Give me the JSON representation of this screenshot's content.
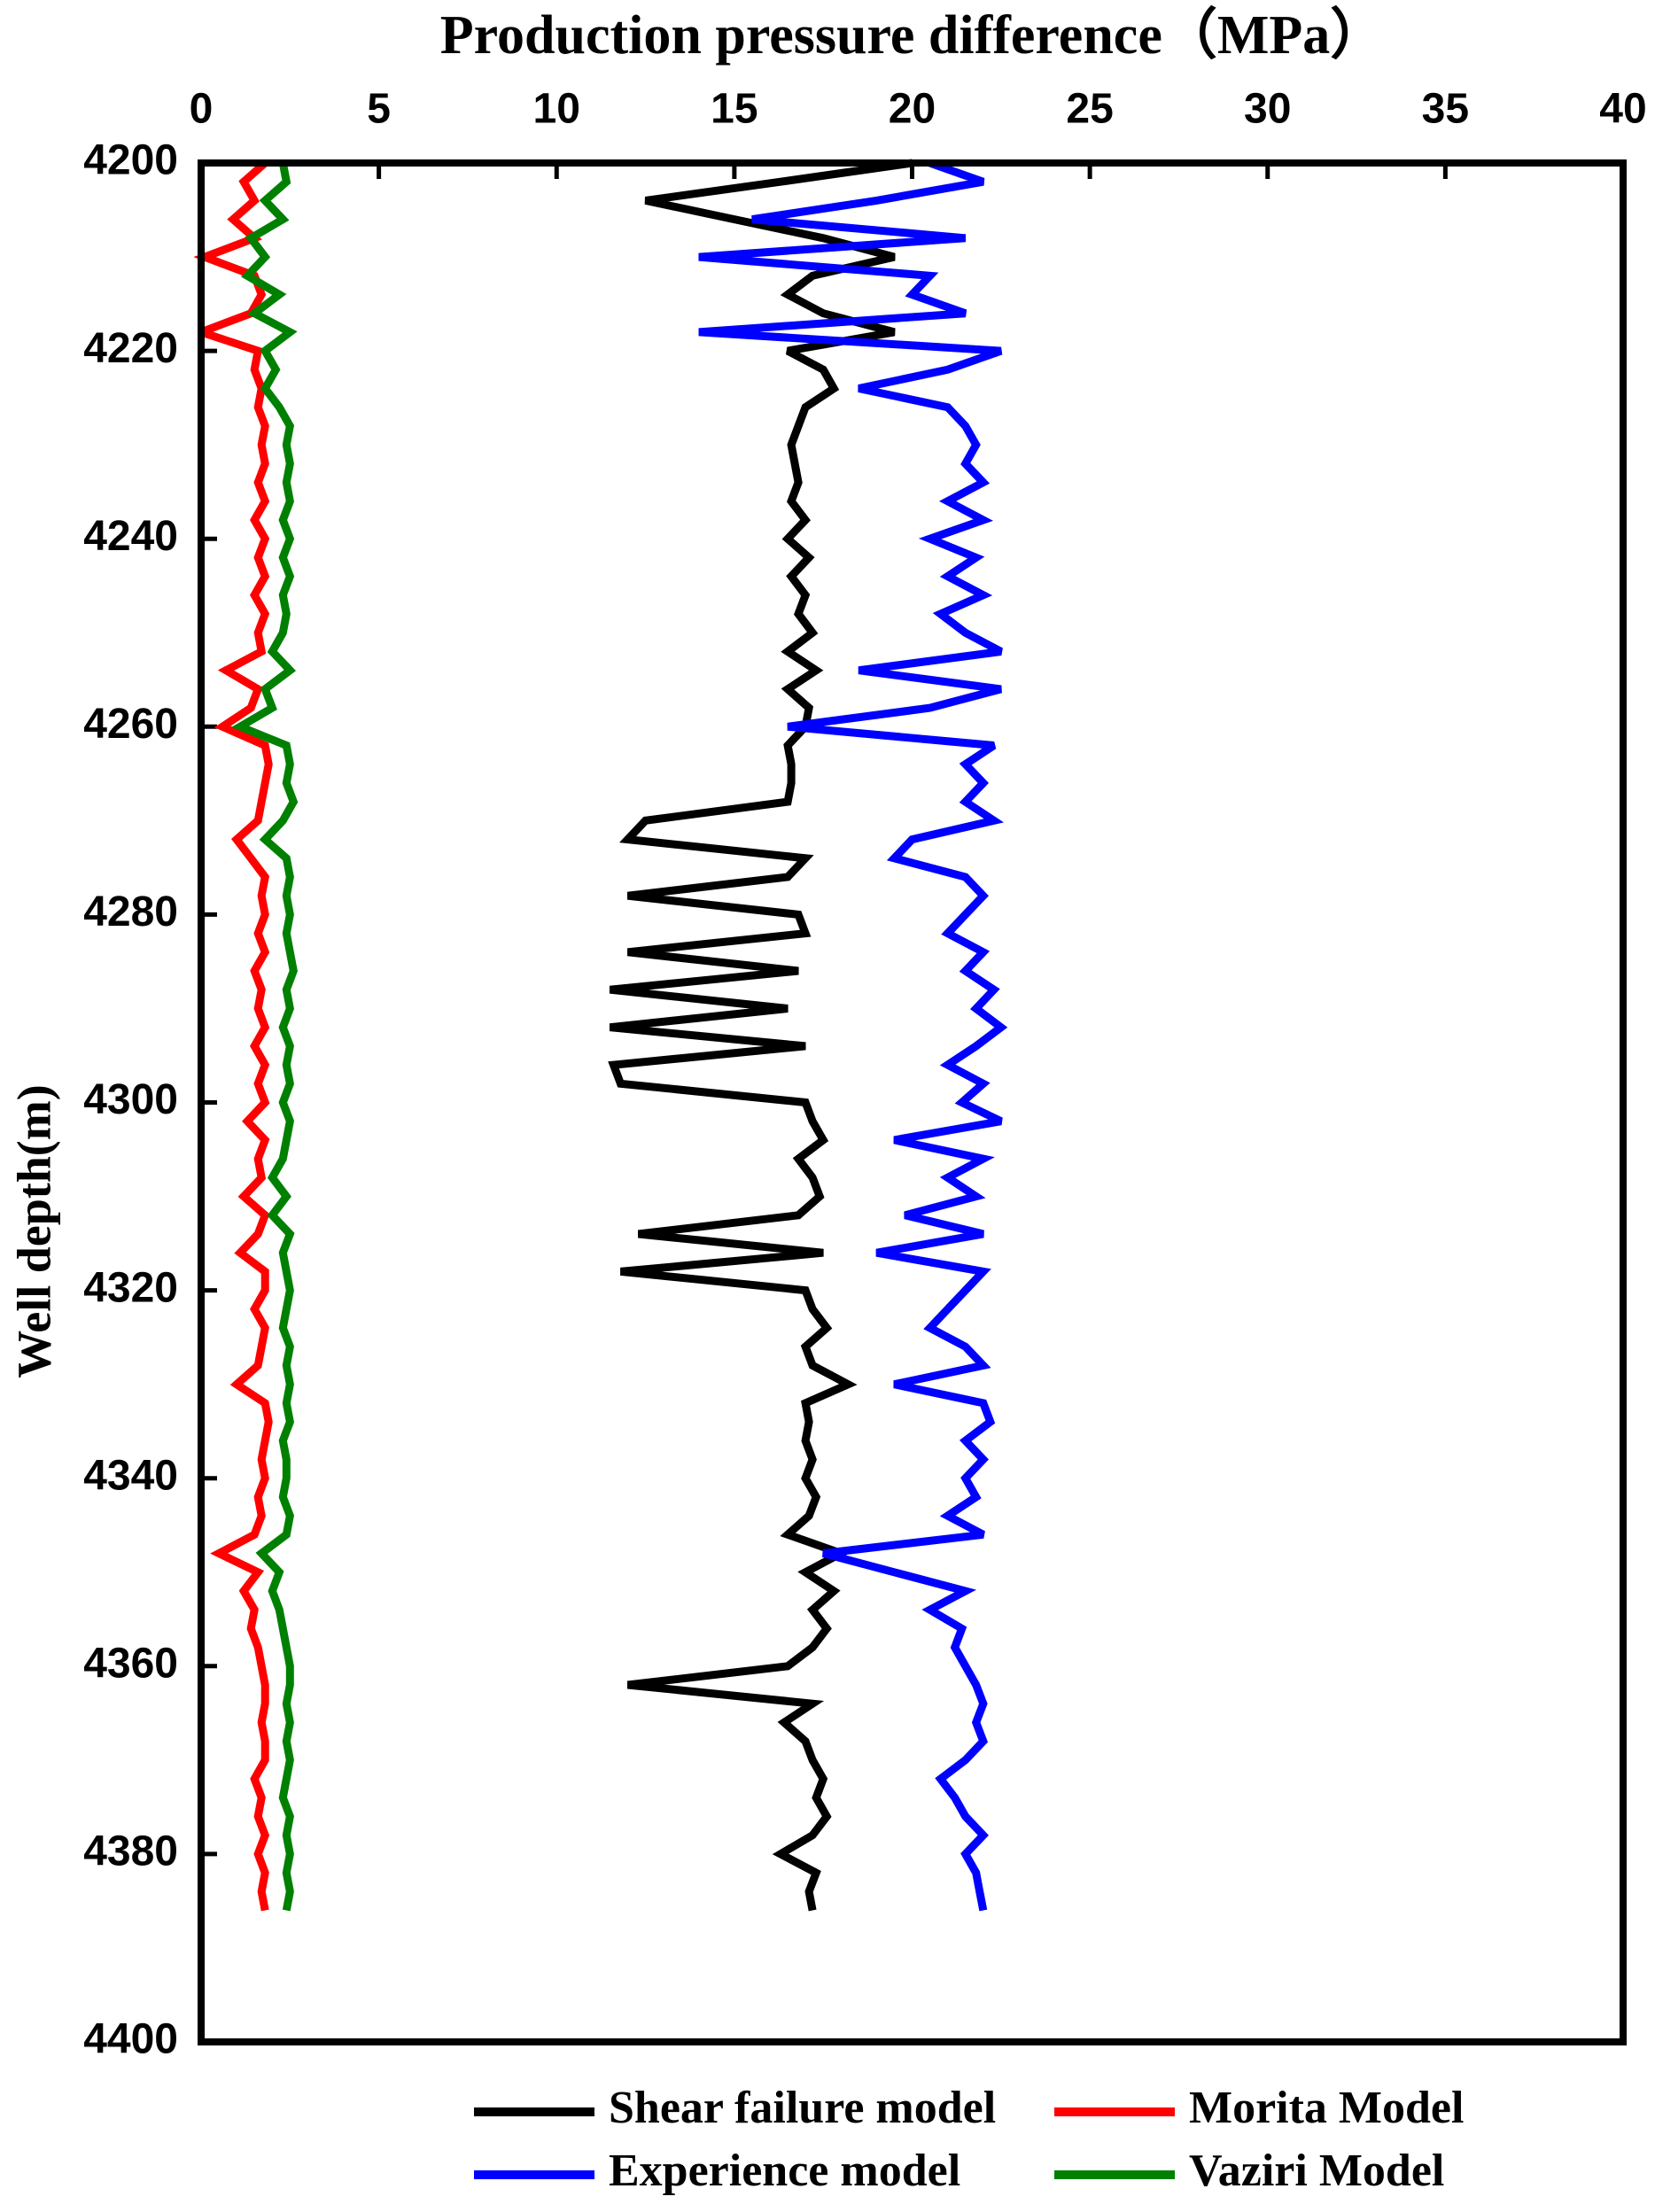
{
  "chart_data": {
    "type": "line",
    "title": "Production pressure difference（MPa）",
    "y_label": "Well depth(m)",
    "xlim": [
      0,
      40
    ],
    "xticks": [
      0,
      5,
      10,
      15,
      20,
      25,
      30,
      35,
      40
    ],
    "ylim": [
      4200,
      4400
    ],
    "yticks": [
      4200,
      4220,
      4240,
      4260,
      4280,
      4300,
      4320,
      4340,
      4360,
      4380,
      4400
    ],
    "y_inverted": true,
    "x_axis_position": "top",
    "legend": "bottom",
    "y": [
      4200,
      4202,
      4204,
      4206,
      4208,
      4210,
      4212,
      4214,
      4216,
      4218,
      4220,
      4222,
      4224,
      4226,
      4228,
      4230,
      4232,
      4234,
      4236,
      4238,
      4240,
      4242,
      4244,
      4246,
      4248,
      4250,
      4252,
      4254,
      4256,
      4258,
      4260,
      4262,
      4264,
      4266,
      4268,
      4270,
      4272,
      4274,
      4276,
      4278,
      4280,
      4282,
      4284,
      4286,
      4288,
      4290,
      4292,
      4294,
      4296,
      4298,
      4300,
      4302,
      4304,
      4306,
      4308,
      4310,
      4312,
      4314,
      4316,
      4318,
      4320,
      4322,
      4324,
      4326,
      4328,
      4330,
      4332,
      4334,
      4336,
      4338,
      4340,
      4342,
      4344,
      4346,
      4348,
      4350,
      4352,
      4354,
      4356,
      4358,
      4360,
      4362,
      4364,
      4366,
      4368,
      4370,
      4372,
      4374,
      4376,
      4378,
      4380,
      4382,
      4384,
      4386
    ],
    "series": [
      {
        "name": "Shear failure model",
        "color": "#000000",
        "values": [
          20,
          16.3,
          12.5,
          15,
          17.5,
          19.5,
          17.2,
          16.5,
          17.5,
          19.5,
          16.5,
          17.5,
          17.8,
          17,
          16.8,
          16.6,
          16.7,
          16.8,
          16.6,
          17,
          16.5,
          17.1,
          16.6,
          17,
          16.8,
          17.2,
          16.5,
          17.3,
          16.5,
          17.1,
          17,
          16.5,
          16.6,
          16.6,
          16.5,
          12.5,
          12,
          17,
          16.5,
          12,
          16.8,
          17,
          12,
          16.8,
          11.5,
          16.5,
          11.5,
          17,
          11.6,
          11.8,
          17,
          17.2,
          17.5,
          16.8,
          17.2,
          17.4,
          16.8,
          12.3,
          17.5,
          11.8,
          17,
          17.2,
          17.6,
          17,
          17.2,
          18.2,
          17,
          17.1,
          17,
          17.2,
          17,
          17.3,
          17.1,
          16.5,
          18,
          17,
          17.8,
          17.2,
          17.6,
          17.2,
          16.5,
          12,
          17.2,
          16.4,
          17,
          17.2,
          17.5,
          17.3,
          17.6,
          17.2,
          16.3,
          17.3,
          17.1,
          17.2
        ]
      },
      {
        "name": "Morita Model",
        "color": "#ff0000",
        "values": [
          1.8,
          1.2,
          1.5,
          0.9,
          1.5,
          0.1,
          1.5,
          1.7,
          1.4,
          0.0,
          1.6,
          1.5,
          1.7,
          1.6,
          1.8,
          1.7,
          1.8,
          1.6,
          1.8,
          1.5,
          1.8,
          1.6,
          1.8,
          1.5,
          1.8,
          1.6,
          1.7,
          0.7,
          1.6,
          1.4,
          0.6,
          1.8,
          1.9,
          1.8,
          1.7,
          1.6,
          1.0,
          1.4,
          1.8,
          1.7,
          1.8,
          1.6,
          1.8,
          1.5,
          1.7,
          1.6,
          1.8,
          1.5,
          1.8,
          1.6,
          1.8,
          1.3,
          1.8,
          1.6,
          1.7,
          1.2,
          1.8,
          1.6,
          1.1,
          1.8,
          1.8,
          1.5,
          1.8,
          1.7,
          1.6,
          1.0,
          1.8,
          1.9,
          1.8,
          1.7,
          1.8,
          1.6,
          1.7,
          1.5,
          0.5,
          1.6,
          1.2,
          1.5,
          1.4,
          1.6,
          1.7,
          1.8,
          1.8,
          1.7,
          1.8,
          1.8,
          1.5,
          1.7,
          1.6,
          1.8,
          1.6,
          1.8,
          1.7,
          1.8
        ]
      },
      {
        "name": "Experience model",
        "color": "#0000ff",
        "values": [
          20.5,
          22,
          19,
          15.5,
          21.5,
          14,
          20.5,
          20,
          21.5,
          14,
          22.5,
          21,
          18.5,
          21,
          21.5,
          21.8,
          21.5,
          22,
          21,
          22,
          20.5,
          21.8,
          21,
          22,
          20.8,
          21.5,
          22.5,
          18.5,
          22.5,
          20.5,
          16.5,
          22.3,
          21.5,
          22,
          21.5,
          22.3,
          20,
          19.5,
          21.5,
          22,
          21.5,
          21,
          22,
          21.5,
          22.3,
          21.8,
          22.5,
          21.8,
          21,
          22,
          21.4,
          22.5,
          19.5,
          22,
          21,
          21.8,
          19.8,
          22,
          19,
          22,
          21.5,
          21,
          20.5,
          21.5,
          22,
          19.5,
          22,
          22.2,
          21.5,
          22,
          21.5,
          21.8,
          21,
          22,
          17.5,
          19.5,
          21.5,
          20.5,
          21.4,
          21.2,
          21.5,
          21.8,
          22,
          21.8,
          22,
          21.5,
          20.8,
          21.2,
          21.5,
          22,
          21.5,
          21.8,
          21.9,
          22
        ]
      },
      {
        "name": "Vaziri Model",
        "color": "#008000",
        "values": [
          2.3,
          2.4,
          1.8,
          2.3,
          1.4,
          1.8,
          1.3,
          2.2,
          1.5,
          2.5,
          1.8,
          2.1,
          1.8,
          2.2,
          2.5,
          2.4,
          2.5,
          2.4,
          2.5,
          2.3,
          2.5,
          2.3,
          2.5,
          2.3,
          2.4,
          2.3,
          2.0,
          2.5,
          1.8,
          2.0,
          1.1,
          2.4,
          2.5,
          2.4,
          2.6,
          2.3,
          1.8,
          2.4,
          2.5,
          2.4,
          2.5,
          2.4,
          2.5,
          2.6,
          2.4,
          2.5,
          2.3,
          2.5,
          2.4,
          2.5,
          2.3,
          2.5,
          2.4,
          2.3,
          2.0,
          2.4,
          2.0,
          2.5,
          2.3,
          2.4,
          2.5,
          2.4,
          2.3,
          2.5,
          2.4,
          2.5,
          2.4,
          2.5,
          2.3,
          2.4,
          2.4,
          2.3,
          2.5,
          2.4,
          1.7,
          2.2,
          2.0,
          2.2,
          2.3,
          2.4,
          2.5,
          2.5,
          2.4,
          2.5,
          2.4,
          2.5,
          2.4,
          2.3,
          2.5,
          2.4,
          2.5,
          2.4,
          2.5,
          2.4
        ]
      }
    ]
  }
}
